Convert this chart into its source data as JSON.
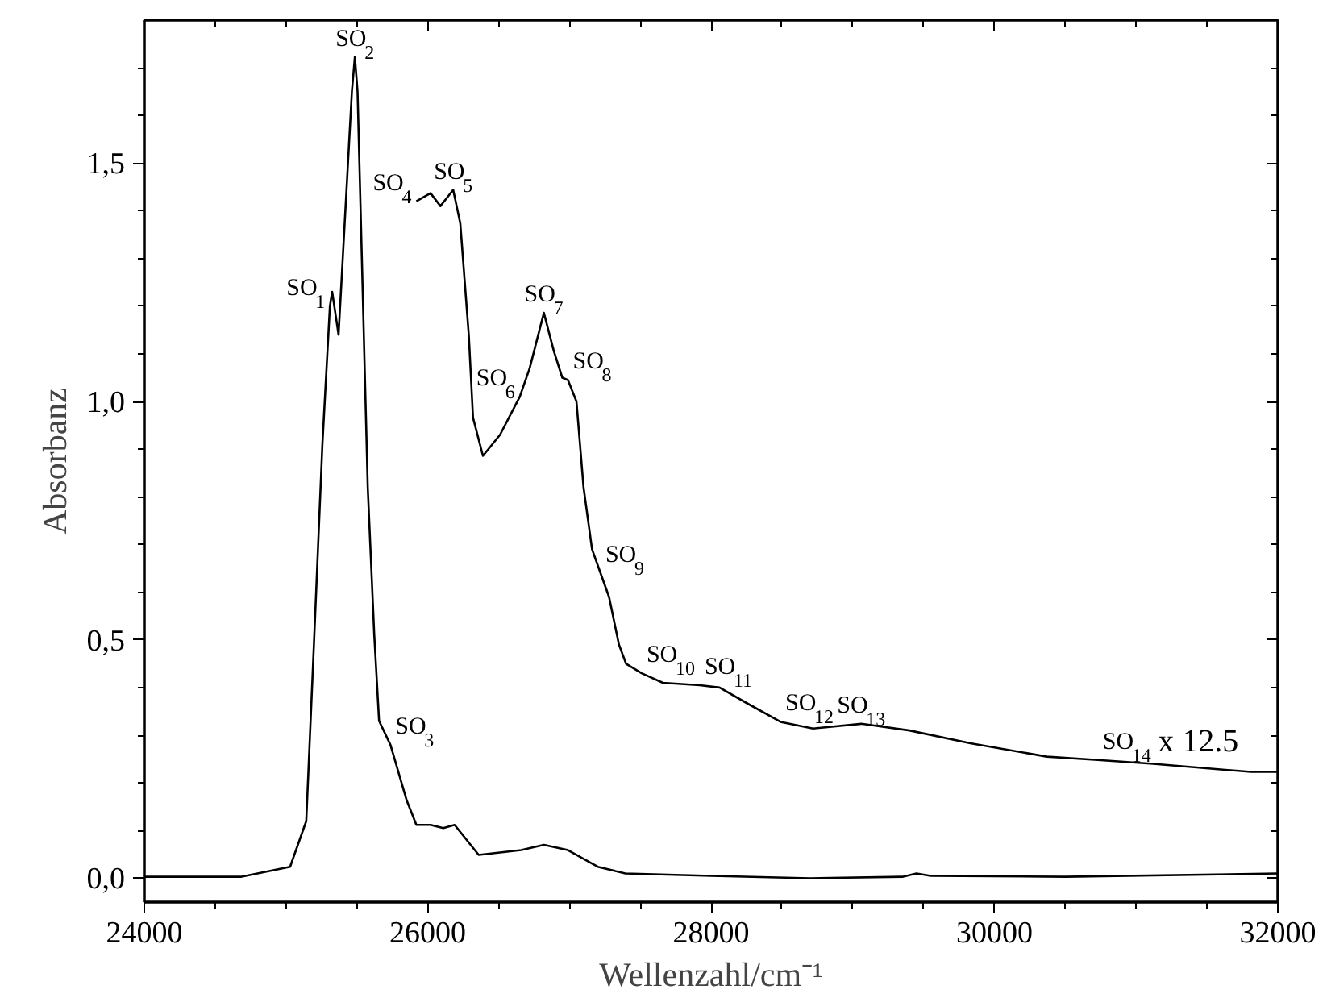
{
  "chart_data": {
    "type": "line",
    "xlabel": "Wellenzahl/cm⁻¹",
    "ylabel": "Absorbanz",
    "xlim": [
      24000,
      32000
    ],
    "ylim": [
      -0.05,
      1.8
    ],
    "xticks": [
      24000,
      26000,
      28000,
      30000,
      32000
    ],
    "yticks": [
      {
        "value": 0,
        "label": "0,0"
      },
      {
        "value": 0.5,
        "label": "0,5"
      },
      {
        "value": 1.0,
        "label": "1,0"
      },
      {
        "value": 1.5,
        "label": "1,5"
      }
    ],
    "marker": "none",
    "line_style": "solid",
    "series": [
      {
        "color": "#000000",
        "x": [
          24000,
          24680,
          25029,
          25143,
          25200,
          25257,
          25310,
          25326,
          25371,
          25465,
          25486,
          25505,
          25577,
          25623,
          25657,
          25737,
          25851,
          25920,
          26020,
          26110,
          26190,
          26360,
          26660,
          26820,
          26990,
          27200,
          27395,
          28000,
          28700,
          29350,
          29450,
          29550,
          30500,
          32000
        ],
        "values": [
          0.003,
          0.003,
          0.024,
          0.12,
          0.51,
          0.91,
          1.2,
          1.23,
          1.14,
          1.65,
          1.723,
          1.65,
          0.82,
          0.51,
          0.33,
          0.28,
          0.164,
          0.112,
          0.112,
          0.105,
          0.112,
          0.049,
          0.059,
          0.07,
          0.059,
          0.024,
          0.01,
          0.005,
          0.0,
          0.003,
          0.01,
          0.005,
          0.003,
          0.01
        ]
      },
      {
        "color": "#000000",
        "x": [
          25920,
          26020,
          26090,
          26180,
          26230,
          26290,
          26320,
          26390,
          26510,
          26650,
          26720,
          26820,
          26890,
          26950,
          26990,
          27050,
          27100,
          27160,
          27220,
          27280,
          27350,
          27400,
          27510,
          27660,
          27920,
          28060,
          28260,
          28490,
          28720,
          29060,
          29400,
          29830,
          30370,
          30730,
          31120,
          31810,
          32000
        ],
        "values": [
          1.42,
          1.437,
          1.41,
          1.444,
          1.374,
          1.14,
          0.966,
          0.886,
          0.93,
          1.01,
          1.07,
          1.186,
          1.106,
          1.05,
          1.045,
          1.0,
          0.82,
          0.69,
          0.64,
          0.59,
          0.49,
          0.45,
          0.43,
          0.41,
          0.405,
          0.4,
          0.366,
          0.328,
          0.314,
          0.324,
          0.31,
          0.283,
          0.255,
          0.248,
          0.24,
          0.223,
          0.223
        ]
      }
    ],
    "annotations": [
      {
        "text": "SO$_{1}$",
        "x": 25310,
        "y": 1.2
      },
      {
        "text": "SO$_{2}$",
        "x": 25486,
        "y": 1.723
      },
      {
        "text": "SO$_{3}$",
        "x": 25737,
        "y": 0.28
      },
      {
        "text": "SO$_{4}$",
        "x": 25920,
        "y": 1.42
      },
      {
        "text": "SO$_{5}$",
        "x": 26180,
        "y": 1.444
      },
      {
        "text": "SO$_{6}$",
        "x": 26650,
        "y": 1.01
      },
      {
        "text": "SO$_{7}$",
        "x": 26820,
        "y": 1.186
      },
      {
        "text": "SO$_{8}$",
        "x": 26990,
        "y": 1.045
      },
      {
        "text": "SO$_{9}$",
        "x": 27220,
        "y": 0.64
      },
      {
        "text": "SO$_{10}$",
        "x": 27510,
        "y": 0.43
      },
      {
        "text": "SO$_{11}$",
        "x": 27920,
        "y": 0.405
      },
      {
        "text": "SO$_{12}$",
        "x": 28490,
        "y": 0.328
      },
      {
        "text": "SO$_{13}$",
        "x": 29060,
        "y": 0.324
      },
      {
        "text": "SO$_{14}$",
        "x": 30730,
        "y": 0.248
      },
      {
        "text": "x 12.5",
        "x": 31120,
        "y": 0.24
      }
    ]
  }
}
